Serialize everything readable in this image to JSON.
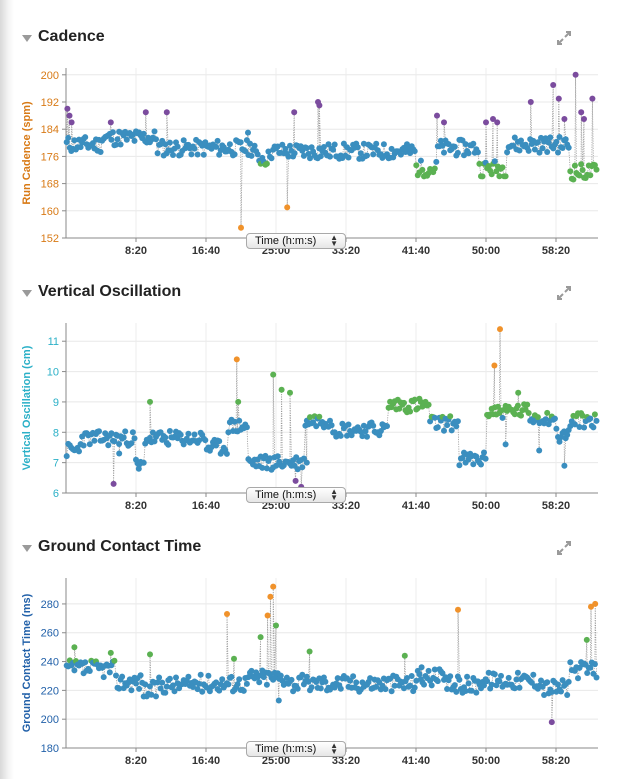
{
  "colors": {
    "blue": "#3a8ebf",
    "purple": "#7b4c9e",
    "green": "#5bb152",
    "orange": "#f0922b",
    "cadence_label": "#d87a16",
    "vo_label": "#2bb0c7",
    "gct_label": "#2261a9"
  },
  "icons": {
    "collapse": "triangle-down-icon",
    "expand": "expand-arrows-icon",
    "select": "up-down-arrow-icon"
  },
  "panels": [
    {
      "title": "Cadence",
      "select_label": "Time (h:m:s)",
      "chart_data": {
        "type": "scatter",
        "ylabel": "Run Cadence (spm)",
        "xlabel": "",
        "x_ticks": [
          "8:20",
          "16:40",
          "25:00",
          "33:20",
          "41:40",
          "50:00",
          "58:20"
        ],
        "x_tick_values": [
          500,
          1000,
          1500,
          2000,
          2500,
          3000,
          3500
        ],
        "xlim": [
          0,
          3800
        ],
        "y_ticks": [
          152,
          160,
          168,
          176,
          184,
          192,
          200
        ],
        "ylim": [
          152,
          202
        ],
        "grid": true,
        "thresholds": {
          "purple_above": 185,
          "green_below": 174,
          "orange_below": 163
        },
        "series": [
          {
            "seed": 11,
            "base": 181.5,
            "noise": 2.4,
            "segments": [
              [
                0,
                250,
                -2
              ],
              [
                250,
                650,
                0
              ],
              [
                650,
                1350,
                -3
              ],
              [
                1350,
                1450,
                -6
              ],
              [
                1450,
                1850,
                -4
              ],
              [
                1850,
                2500,
                -4
              ],
              [
                2500,
                2650,
                -9
              ],
              [
                2650,
                2950,
                -3
              ],
              [
                2950,
                3150,
                -9
              ],
              [
                3150,
                3600,
                -2
              ],
              [
                3600,
                3800,
                -10
              ]
            ],
            "spikes": [
              [
                10,
                190
              ],
              [
                25,
                188
              ],
              [
                40,
                186
              ],
              [
                320,
                186
              ],
              [
                570,
                189
              ],
              [
                720,
                189
              ],
              [
                1250,
                155
              ],
              [
                1300,
                183
              ],
              [
                1580,
                161
              ],
              [
                1630,
                189
              ],
              [
                1800,
                192
              ],
              [
                1810,
                191
              ],
              [
                2650,
                188
              ],
              [
                2700,
                186
              ],
              [
                3000,
                186
              ],
              [
                3050,
                187
              ],
              [
                3080,
                186
              ],
              [
                3320,
                192
              ],
              [
                3480,
                197
              ],
              [
                3520,
                193
              ],
              [
                3560,
                187
              ],
              [
                3640,
                200
              ],
              [
                3680,
                189
              ],
              [
                3700,
                187
              ],
              [
                3760,
                193
              ]
            ]
          }
        ]
      }
    },
    {
      "title": "Vertical Oscillation",
      "select_label": "Time (h:m:s)",
      "chart_data": {
        "type": "scatter",
        "ylabel": "Vertical Oscillation (cm)",
        "xlabel": "",
        "x_ticks": [
          "8:20",
          "16:40",
          "25:00",
          "33:20",
          "41:40",
          "50:00",
          "58:20"
        ],
        "x_tick_values": [
          500,
          1000,
          1500,
          2000,
          2500,
          3000,
          3500
        ],
        "xlim": [
          0,
          3800
        ],
        "y_ticks": [
          6,
          7,
          8,
          9,
          10,
          11
        ],
        "ylim": [
          6,
          11.6
        ],
        "grid": true,
        "thresholds": {
          "purple_below": 6.5,
          "green_above": 8.5,
          "orange_above": 10
        },
        "series": [
          {
            "seed": 23,
            "base": 7.8,
            "noise": 0.25,
            "segments": [
              [
                0,
                100,
                -0.4
              ],
              [
                100,
                500,
                0
              ],
              [
                500,
                560,
                -0.9
              ],
              [
                560,
                1000,
                0
              ],
              [
                1000,
                1150,
                -0.3
              ],
              [
                1150,
                1300,
                0.4
              ],
              [
                1300,
                1700,
                -0.8
              ],
              [
                1700,
                1900,
                0.6
              ],
              [
                1900,
                2300,
                0.3
              ],
              [
                2300,
                2600,
                1.1
              ],
              [
                2600,
                2800,
                0.5
              ],
              [
                2800,
                3000,
                -0.7
              ],
              [
                3000,
                3300,
                0.9
              ],
              [
                3300,
                3500,
                0.7
              ],
              [
                3500,
                3600,
                0.1
              ],
              [
                3600,
                3800,
                0.6
              ]
            ],
            "spikes": [
              [
                340,
                6.3
              ],
              [
                380,
                7.3
              ],
              [
                520,
                6.8
              ],
              [
                600,
                9.0
              ],
              [
                1220,
                10.4
              ],
              [
                1230,
                9.0
              ],
              [
                1480,
                9.9
              ],
              [
                1540,
                9.4
              ],
              [
                1600,
                9.3
              ],
              [
                1640,
                6.4
              ],
              [
                1680,
                6.2
              ],
              [
                1720,
                7.0
              ],
              [
                3060,
                10.2
              ],
              [
                3100,
                11.4
              ],
              [
                3140,
                7.6
              ],
              [
                3230,
                9.3
              ],
              [
                3380,
                7.4
              ],
              [
                3560,
                6.9
              ]
            ]
          }
        ]
      }
    },
    {
      "title": "Ground Contact Time",
      "select_label": "Time (h:m:s)",
      "chart_data": {
        "type": "scatter",
        "ylabel": "Ground Contact Time (ms)",
        "xlabel": "",
        "x_ticks": [
          "8:20",
          "16:40",
          "25:00",
          "33:20",
          "41:40",
          "50:00",
          "58:20"
        ],
        "x_tick_values": [
          500,
          1000,
          1500,
          2000,
          2500,
          3000,
          3500
        ],
        "xlim": [
          0,
          3800
        ],
        "y_ticks": [
          180,
          200,
          220,
          240,
          260,
          280
        ],
        "ylim": [
          180,
          298
        ],
        "grid": true,
        "thresholds": {
          "purple_below": 200,
          "green_above": 240,
          "orange_above": 268
        },
        "series": [
          {
            "seed": 37,
            "base": 226,
            "noise": 6,
            "segments": [
              [
                0,
                350,
                9
              ],
              [
                350,
                550,
                0
              ],
              [
                550,
                650,
                -6
              ],
              [
                650,
                900,
                -2
              ],
              [
                900,
                1300,
                -1
              ],
              [
                1300,
                1600,
                3
              ],
              [
                1600,
                2000,
                -1
              ],
              [
                2000,
                2500,
                -1
              ],
              [
                2500,
                2700,
                3
              ],
              [
                2700,
                2950,
                -2
              ],
              [
                2950,
                3400,
                1
              ],
              [
                3400,
                3600,
                -4
              ],
              [
                3600,
                3800,
                8
              ]
            ],
            "spikes": [
              [
                60,
                250
              ],
              [
                320,
                246
              ],
              [
                600,
                245
              ],
              [
                1150,
                273
              ],
              [
                1200,
                242
              ],
              [
                1390,
                257
              ],
              [
                1440,
                272
              ],
              [
                1460,
                285
              ],
              [
                1480,
                292
              ],
              [
                1500,
                265
              ],
              [
                1520,
                213
              ],
              [
                1740,
                247
              ],
              [
                2420,
                244
              ],
              [
                2540,
                236
              ],
              [
                2800,
                276
              ],
              [
                3470,
                198
              ],
              [
                3720,
                255
              ],
              [
                3750,
                278
              ],
              [
                3780,
                280
              ]
            ]
          }
        ]
      }
    }
  ]
}
